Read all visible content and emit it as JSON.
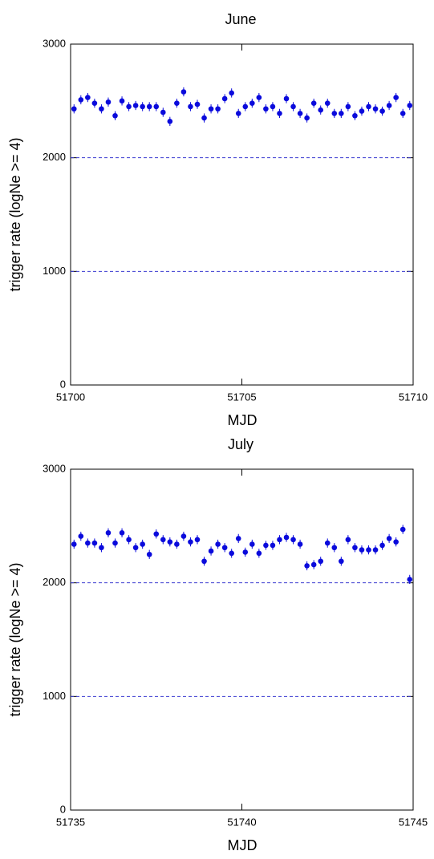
{
  "chart_data": [
    {
      "type": "scatter",
      "title": "June",
      "x_label": "MJD",
      "y_label": "trigger rate (logNe >= 4)",
      "x": [
        51700.1,
        51700.3,
        51700.5,
        51700.7,
        51700.9,
        51701.1,
        51701.3,
        51701.5,
        51701.7,
        51701.9,
        51702.1,
        51702.3,
        51702.5,
        51702.7,
        51702.9,
        51703.1,
        51703.3,
        51703.5,
        51703.7,
        51703.9,
        51704.1,
        51704.3,
        51704.5,
        51704.7,
        51704.9,
        51705.1,
        51705.3,
        51705.5,
        51705.7,
        51705.9,
        51706.1,
        51706.3,
        51706.5,
        51706.7,
        51706.9,
        51707.1,
        51707.3,
        51707.5,
        51707.7,
        51707.9,
        51708.1,
        51708.3,
        51708.5,
        51708.7,
        51708.9,
        51709.1,
        51709.3,
        51709.5,
        51709.7,
        51709.9
      ],
      "values": [
        2430,
        2510,
        2530,
        2480,
        2430,
        2490,
        2370,
        2500,
        2450,
        2460,
        2450,
        2450,
        2450,
        2400,
        2320,
        2480,
        2580,
        2450,
        2470,
        2350,
        2430,
        2430,
        2520,
        2570,
        2390,
        2450,
        2480,
        2530,
        2430,
        2450,
        2390,
        2520,
        2450,
        2390,
        2350,
        2480,
        2420,
        2480,
        2390,
        2390,
        2450,
        2370,
        2410,
        2450,
        2430,
        2410,
        2460,
        2530,
        2390,
        2460
      ],
      "errors": [
        40,
        40,
        40,
        40,
        40,
        40,
        40,
        40,
        40,
        40,
        40,
        40,
        40,
        40,
        40,
        40,
        40,
        40,
        40,
        40,
        40,
        40,
        40,
        40,
        40,
        40,
        40,
        40,
        40,
        40,
        40,
        40,
        40,
        40,
        40,
        40,
        40,
        40,
        40,
        40,
        40,
        40,
        40,
        40,
        40,
        40,
        40,
        40,
        40,
        40
      ],
      "color": "#0a0adc",
      "reference_lines": [
        1000,
        2000
      ],
      "reference_color": "#3a3ad0",
      "xlim": [
        51700,
        51710
      ],
      "xticks": [
        51700,
        51705,
        51710
      ],
      "ylim": [
        0,
        3000
      ],
      "yticks": [
        0,
        1000,
        2000,
        3000
      ]
    },
    {
      "type": "scatter",
      "title": "July",
      "x_label": "MJD",
      "y_label": "trigger rate (logNe >= 4)",
      "x": [
        51735.1,
        51735.3,
        51735.5,
        51735.7,
        51735.9,
        51736.1,
        51736.3,
        51736.5,
        51736.7,
        51736.9,
        51737.1,
        51737.3,
        51737.5,
        51737.7,
        51737.9,
        51738.1,
        51738.3,
        51738.5,
        51738.7,
        51738.9,
        51739.1,
        51739.3,
        51739.5,
        51739.7,
        51739.9,
        51740.1,
        51740.3,
        51740.5,
        51740.7,
        51740.9,
        51741.1,
        51741.3,
        51741.5,
        51741.7,
        51741.9,
        51742.1,
        51742.3,
        51742.5,
        51742.7,
        51742.9,
        51743.1,
        51743.3,
        51743.5,
        51743.7,
        51743.9,
        51744.1,
        51744.3,
        51744.5,
        51744.7,
        51744.9
      ],
      "values": [
        2340,
        2410,
        2350,
        2350,
        2310,
        2440,
        2350,
        2440,
        2380,
        2310,
        2340,
        2250,
        2430,
        2380,
        2360,
        2340,
        2410,
        2360,
        2380,
        2190,
        2280,
        2340,
        2310,
        2260,
        2390,
        2270,
        2340,
        2260,
        2330,
        2330,
        2380,
        2400,
        2380,
        2340,
        2150,
        2160,
        2190,
        2350,
        2310,
        2190,
        2380,
        2310,
        2290,
        2290,
        2290,
        2330,
        2390,
        2360,
        2470,
        2030
      ],
      "errors": [
        40,
        40,
        40,
        40,
        40,
        40,
        40,
        40,
        40,
        40,
        40,
        40,
        40,
        40,
        40,
        40,
        40,
        40,
        40,
        40,
        40,
        40,
        40,
        40,
        40,
        40,
        40,
        40,
        40,
        40,
        40,
        40,
        40,
        40,
        40,
        40,
        40,
        40,
        40,
        40,
        40,
        40,
        40,
        40,
        40,
        40,
        40,
        40,
        40,
        40
      ],
      "color": "#0a0adc",
      "reference_lines": [
        1000,
        2000
      ],
      "reference_color": "#3a3ad0",
      "xlim": [
        51735,
        51745
      ],
      "xticks": [
        51735,
        51740,
        51745
      ],
      "ylim": [
        0,
        3000
      ],
      "yticks": [
        0,
        1000,
        2000,
        3000
      ]
    }
  ]
}
